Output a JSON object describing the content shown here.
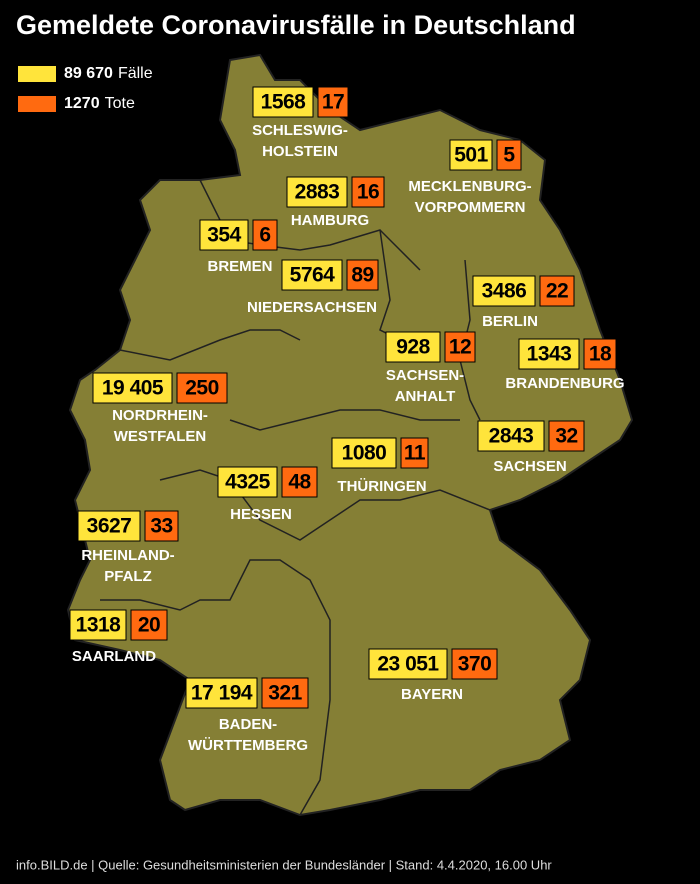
{
  "title": "Gemeldete Coronavirusfälle in Deutschland",
  "legend": [
    {
      "value": "89 670",
      "label": "Fälle"
    },
    {
      "value": "1270",
      "label": "Tote"
    }
  ],
  "states": [
    {
      "name": [
        "SCHLESWIG-",
        "HOLSTEIN"
      ],
      "cases": "1568",
      "deaths": "17"
    },
    {
      "name": [
        "MECKLENBURG-",
        "VORPOMMERN"
      ],
      "cases": "501",
      "deaths": "5"
    },
    {
      "name": [
        "HAMBURG"
      ],
      "cases": "2883",
      "deaths": "16"
    },
    {
      "name": [
        "BREMEN"
      ],
      "cases": "354",
      "deaths": "6"
    },
    {
      "name": [
        "NIEDERSACHSEN"
      ],
      "cases": "5764",
      "deaths": "89"
    },
    {
      "name": [
        "BERLIN"
      ],
      "cases": "3486",
      "deaths": "22"
    },
    {
      "name": [
        "SACHSEN-",
        "ANHALT"
      ],
      "cases": "928",
      "deaths": "12"
    },
    {
      "name": [
        "BRANDENBURG"
      ],
      "cases": "1343",
      "deaths": "18"
    },
    {
      "name": [
        "NORDRHEIN-",
        "WESTFALEN"
      ],
      "cases": "19 405",
      "deaths": "250"
    },
    {
      "name": [
        "SACHSEN"
      ],
      "cases": "2843",
      "deaths": "32"
    },
    {
      "name": [
        "THÜRINGEN"
      ],
      "cases": "1080",
      "deaths": "11"
    },
    {
      "name": [
        "HESSEN"
      ],
      "cases": "4325",
      "deaths": "48"
    },
    {
      "name": [
        "RHEINLAND-",
        "PFALZ"
      ],
      "cases": "3627",
      "deaths": "33"
    },
    {
      "name": [
        "SAARLAND"
      ],
      "cases": "1318",
      "deaths": "20"
    },
    {
      "name": [
        "BAYERN"
      ],
      "cases": "23 051",
      "deaths": "370"
    },
    {
      "name": [
        "BADEN-",
        "WÜRTTEMBERG"
      ],
      "cases": "17 194",
      "deaths": "321"
    }
  ],
  "footer": "info.BILD.de | Quelle: Gesundheitsministerien der Bundesländer | Stand: 4.4.2020, 16.00 Uhr"
}
